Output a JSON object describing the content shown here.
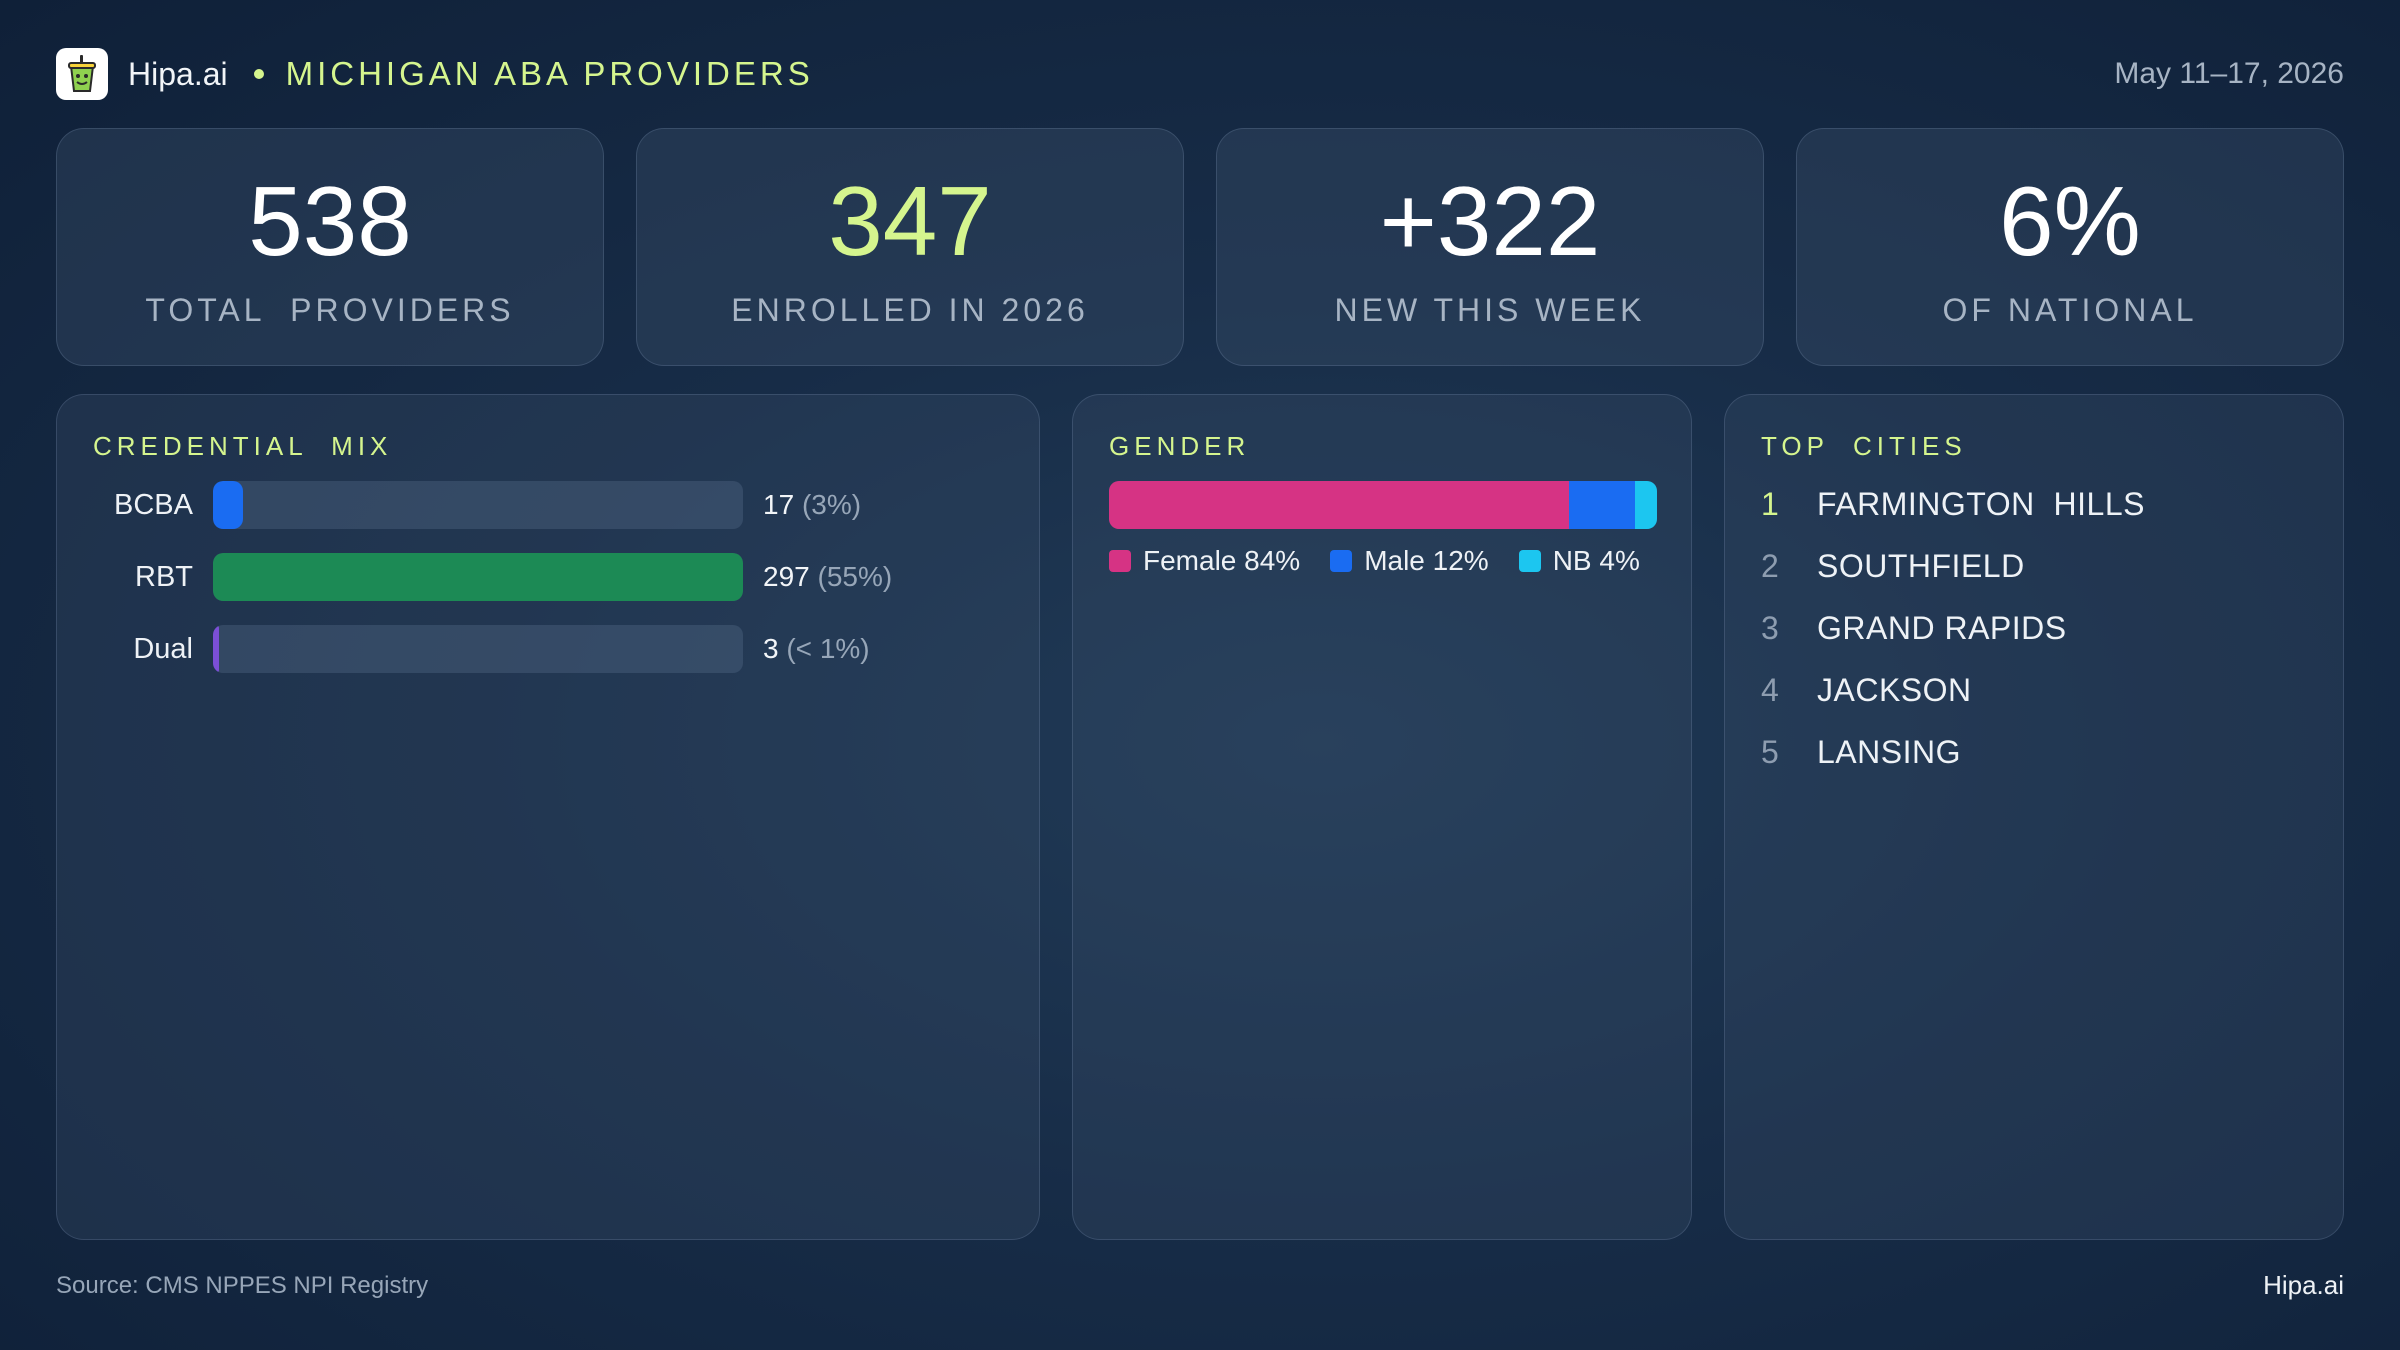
{
  "header": {
    "brand": "Hipa.ai",
    "title": "MICHIGAN ABA PROVIDERS",
    "date_range": "May 11–17, 2026",
    "logo_icon": "cup-logo-icon"
  },
  "kpis": [
    {
      "value": "538",
      "label": "TOTAL  PROVIDERS"
    },
    {
      "value": "347",
      "label": "ENROLLED IN 2026"
    },
    {
      "value": "+322",
      "label": "NEW THIS WEEK"
    },
    {
      "value": "6%",
      "label": "OF NATIONAL"
    }
  ],
  "credential_mix": {
    "title": "CREDENTIAL  MIX",
    "rows": [
      {
        "label": "BCBA",
        "count": "17",
        "pct_label": "(3%)",
        "fraction": 0.057,
        "color": "#1a6cf2"
      },
      {
        "label": "RBT",
        "count": "297",
        "pct_label": "(55%)",
        "fraction": 1.0,
        "color": "#1c8a55"
      },
      {
        "label": "Dual",
        "count": "3",
        "pct_label": "(< 1%)",
        "fraction": 0.01,
        "color": "#7b4fd6"
      }
    ]
  },
  "gender": {
    "title": "GENDER",
    "segments": [
      {
        "label": "Female 84%",
        "fraction": 0.84,
        "color": "#d63384"
      },
      {
        "label": "Male 12%",
        "fraction": 0.12,
        "color": "#1a6cf2"
      },
      {
        "label": "NB 4%",
        "fraction": 0.04,
        "color": "#1cc6f0"
      }
    ]
  },
  "top_cities": {
    "title": "TOP  CITIES",
    "items": [
      {
        "rank": "1",
        "name": "FARMINGTON  HILLS"
      },
      {
        "rank": "2",
        "name": "SOUTHFIELD"
      },
      {
        "rank": "3",
        "name": "GRAND RAPIDS"
      },
      {
        "rank": "4",
        "name": "JACKSON"
      },
      {
        "rank": "5",
        "name": "LANSING"
      }
    ]
  },
  "footer": {
    "source": "Source: CMS NPPES NPI Registry",
    "brand": "Hipa.ai"
  },
  "colors": {
    "accent": "#d5f58e",
    "background": "#172c47"
  }
}
